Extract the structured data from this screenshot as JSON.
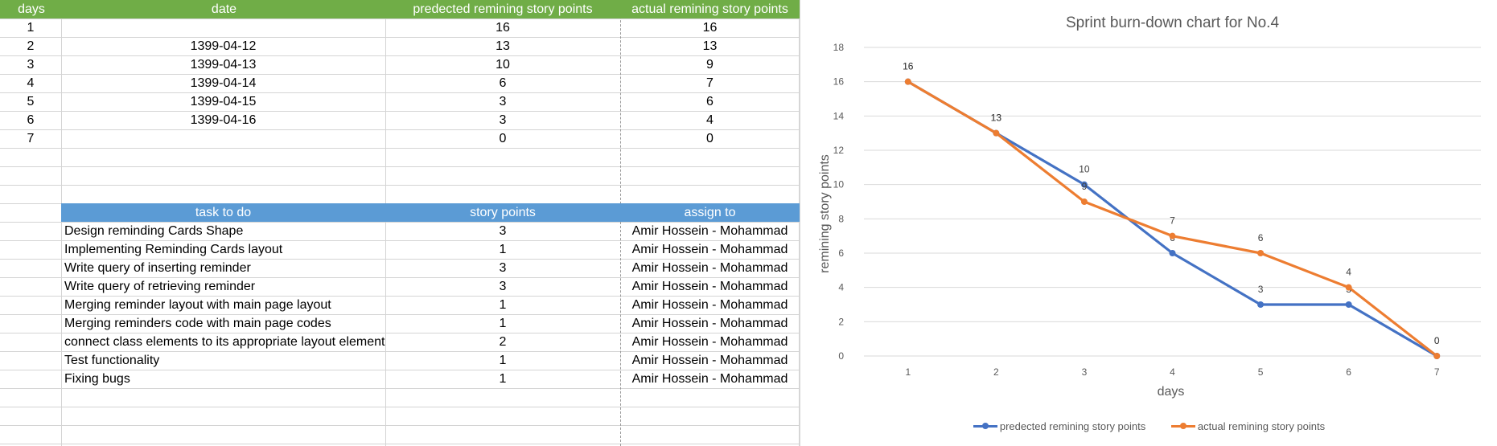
{
  "top_table": {
    "headers": [
      "days",
      "date",
      "predected remining story points",
      "actual remining story points"
    ],
    "rows": [
      [
        "1",
        "",
        "16",
        "16"
      ],
      [
        "2",
        "1399-04-12",
        "13",
        "13"
      ],
      [
        "3",
        "1399-04-13",
        "10",
        "9"
      ],
      [
        "4",
        "1399-04-14",
        "6",
        "7"
      ],
      [
        "5",
        "1399-04-15",
        "3",
        "6"
      ],
      [
        "6",
        "1399-04-16",
        "3",
        "4"
      ],
      [
        "7",
        "",
        "0",
        "0"
      ]
    ]
  },
  "task_table": {
    "headers": [
      "task to do",
      "story points",
      "assign to"
    ],
    "rows": [
      [
        "Design reminding Cards Shape",
        "3",
        "Amir Hossein - Mohammad"
      ],
      [
        "Implementing Reminding Cards layout",
        "1",
        "Amir Hossein - Mohammad"
      ],
      [
        "Write query of inserting reminder",
        "3",
        "Amir Hossein - Mohammad"
      ],
      [
        "Write query of retrieving reminder",
        "3",
        "Amir Hossein - Mohammad"
      ],
      [
        "Merging reminder layout with main page layout",
        "1",
        "Amir Hossein - Mohammad"
      ],
      [
        "Merging reminders code with main page codes",
        "1",
        "Amir Hossein - Mohammad"
      ],
      [
        "connect class elements to its appropriate layout element",
        "2",
        "Amir Hossein - Mohammad"
      ],
      [
        "Test functionality",
        "1",
        "Amir Hossein - Mohammad"
      ],
      [
        "Fixing bugs",
        "1",
        "Amir Hossein - Mohammad"
      ]
    ]
  },
  "colors": {
    "green_header": "#70ad47",
    "blue_header": "#5b9bd5",
    "series_predicted": "#4472c4",
    "series_actual": "#ed7d31"
  },
  "chart_data": {
    "type": "line",
    "title": "Sprint burn-down chart for No.4",
    "xlabel": "days",
    "ylabel": "remining story points",
    "categories": [
      "1",
      "2",
      "3",
      "4",
      "5",
      "6",
      "7"
    ],
    "yticks": [
      "0",
      "2",
      "4",
      "6",
      "8",
      "10",
      "12",
      "14",
      "16",
      "18"
    ],
    "ylim": [
      0,
      18
    ],
    "grid": true,
    "legend": "bottom",
    "series": [
      {
        "name": "predected remining story points",
        "values": [
          16,
          13,
          10,
          6,
          3,
          3,
          0
        ],
        "color": "#4472c4"
      },
      {
        "name": "actual remining story points",
        "values": [
          16,
          13,
          9,
          7,
          6,
          4,
          0
        ],
        "color": "#ed7d31"
      }
    ]
  }
}
